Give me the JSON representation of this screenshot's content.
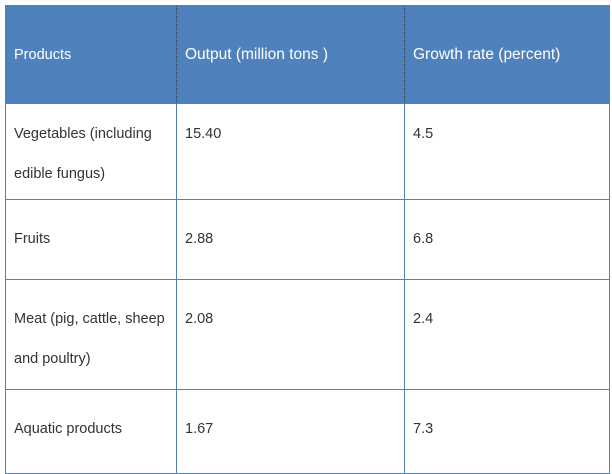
{
  "table": {
    "headers": [
      "Products",
      "Output (million tons )",
      "Growth rate (percent)"
    ],
    "rows": [
      {
        "product": "Vegetables (including edible fungus)",
        "output": "15.40",
        "growth": "4.5"
      },
      {
        "product": "Fruits",
        "output": "2.88",
        "growth": "6.8"
      },
      {
        "product": "Meat (pig, cattle, sheep and poultry)",
        "output": "2.08",
        "growth": "2.4"
      },
      {
        "product": "Aquatic products",
        "output": "1.67",
        "growth": "7.3"
      }
    ]
  },
  "colors": {
    "header_bg": "#4f81bd",
    "header_text": "#ffffff",
    "cell_text": "#333333",
    "border": "#4f81bd"
  }
}
